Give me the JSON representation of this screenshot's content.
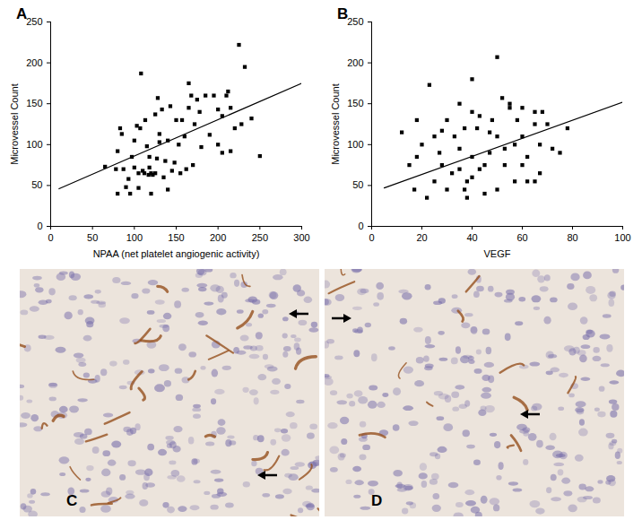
{
  "chart_data": [
    {
      "type": "scatter",
      "title": "A",
      "xlabel": "NPAA (net platelet angiogenic activity)",
      "ylabel": "Microvessel Count",
      "xlim": [
        0,
        300
      ],
      "xticks": [
        0,
        50,
        100,
        150,
        200,
        250,
        300
      ],
      "ylim": [
        0,
        250
      ],
      "yticks": [
        0,
        50,
        100,
        150,
        200,
        250
      ],
      "color": "#000000",
      "marker": "square",
      "trend_line": {
        "x": [
          10,
          300
        ],
        "y": [
          46,
          175
        ]
      },
      "x": [
        65,
        78,
        80,
        80,
        83,
        85,
        87,
        90,
        93,
        95,
        97,
        100,
        100,
        103,
        105,
        105,
        107,
        108,
        110,
        112,
        113,
        115,
        117,
        118,
        118,
        120,
        120,
        122,
        125,
        125,
        127,
        128,
        130,
        130,
        133,
        135,
        137,
        140,
        140,
        143,
        145,
        148,
        150,
        153,
        155,
        157,
        160,
        162,
        165,
        165,
        168,
        170,
        172,
        175,
        178,
        180,
        185,
        190,
        195,
        200,
        200,
        205,
        205,
        210,
        212,
        215,
        220,
        225,
        228,
        232,
        240,
        250,
        215
      ],
      "y": [
        73,
        70,
        92,
        40,
        120,
        113,
        70,
        48,
        58,
        40,
        85,
        105,
        72,
        123,
        47,
        65,
        120,
        187,
        68,
        65,
        130,
        98,
        63,
        72,
        85,
        65,
        40,
        63,
        65,
        137,
        83,
        157,
        113,
        103,
        143,
        60,
        80,
        45,
        105,
        147,
        68,
        78,
        130,
        100,
        65,
        130,
        110,
        70,
        145,
        175,
        160,
        75,
        125,
        155,
        140,
        97,
        160,
        112,
        160,
        100,
        143,
        135,
        90,
        160,
        165,
        92,
        120,
        222,
        125,
        195,
        132,
        86,
        145
      ]
    },
    {
      "type": "scatter",
      "title": "B",
      "xlabel": "VEGF",
      "ylabel": "Microvessel Count",
      "xlim": [
        0,
        100
      ],
      "xticks": [
        0,
        20,
        40,
        60,
        80,
        100
      ],
      "ylim": [
        0,
        250
      ],
      "yticks": [
        0,
        50,
        100,
        150,
        200,
        250
      ],
      "color": "#000000",
      "marker": "square",
      "trend_line": {
        "x": [
          5,
          100
        ],
        "y": [
          47,
          152
        ]
      },
      "x": [
        12,
        15,
        17,
        18,
        18,
        20,
        22,
        23,
        25,
        25,
        27,
        28,
        28,
        30,
        30,
        32,
        33,
        35,
        35,
        35,
        37,
        37,
        38,
        38,
        40,
        40,
        40,
        42,
        43,
        43,
        45,
        45,
        47,
        48,
        50,
        50,
        50,
        52,
        53,
        55,
        55,
        57,
        57,
        58,
        60,
        60,
        60,
        62,
        62,
        65,
        65,
        65,
        67,
        67,
        68,
        70,
        72,
        75,
        78,
        53,
        47,
        40
      ],
      "y": [
        115,
        75,
        45,
        85,
        130,
        100,
        35,
        173,
        110,
        55,
        90,
        117,
        75,
        45,
        130,
        65,
        110,
        70,
        95,
        150,
        120,
        45,
        55,
        35,
        140,
        180,
        85,
        120,
        135,
        70,
        75,
        40,
        115,
        130,
        207,
        45,
        110,
        157,
        75,
        145,
        150,
        100,
        55,
        130,
        75,
        110,
        145,
        85,
        55,
        125,
        140,
        55,
        100,
        65,
        140,
        125,
        95,
        90,
        120,
        95,
        90,
        60
      ]
    }
  ],
  "images": [
    {
      "title": "C"
    },
    {
      "title": "D"
    }
  ]
}
